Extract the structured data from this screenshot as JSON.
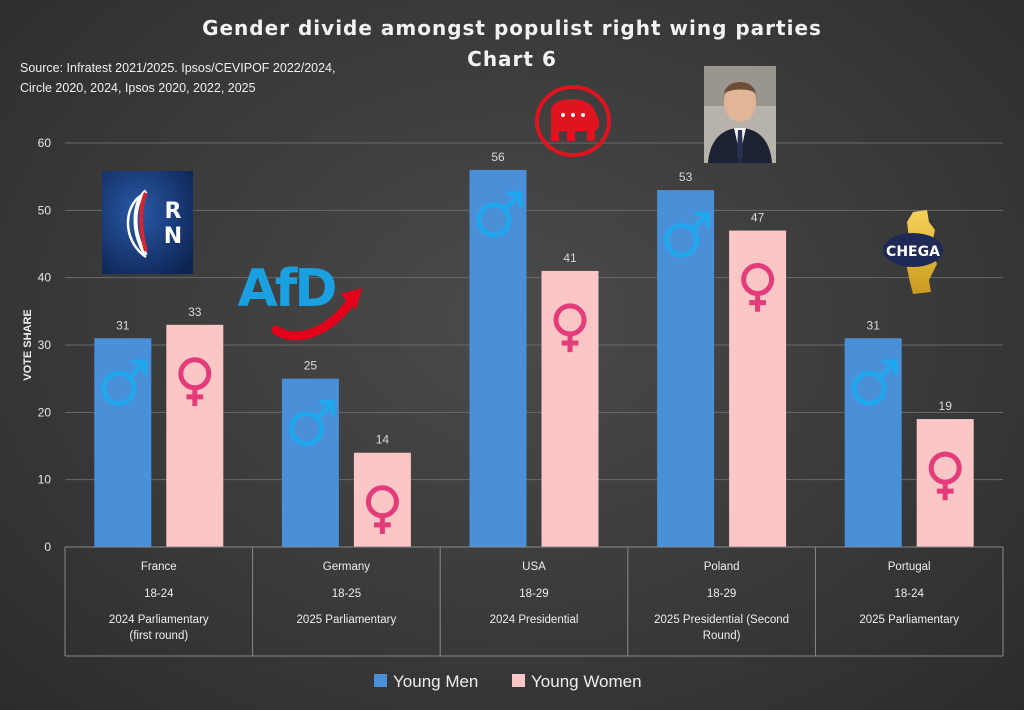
{
  "chart_data": {
    "type": "bar",
    "title": "Gender divide amongst populist right wing parties",
    "subtitle": "Chart 6",
    "source_lines": [
      "Source: Infratest 2021/2025. Ipsos/CEVIPOF 2022/2024,",
      "Circle 2020, 2024, Ipsos 2020, 2022, 2025"
    ],
    "ylabel": "VOTE SHARE",
    "ylim": [
      0,
      60
    ],
    "yticks": [
      0,
      10,
      20,
      30,
      40,
      50,
      60
    ],
    "grid": true,
    "legend_position": "bottom",
    "categories": [
      {
        "country": "France",
        "age": "18-24",
        "election": [
          "2024 Parliamentary",
          "(first round)"
        ],
        "logo": "rn-logo"
      },
      {
        "country": "Germany",
        "age": "18-25",
        "election": [
          "2025 Parliamentary"
        ],
        "logo": "afd-logo"
      },
      {
        "country": "USA",
        "age": "18-29",
        "election": [
          "2024 Presidential"
        ],
        "logo": "gop-elephant-logo"
      },
      {
        "country": "Poland",
        "age": "18-29",
        "election": [
          "2025 Presidential (Second",
          "Round)"
        ],
        "logo": "candidate-photo"
      },
      {
        "country": "Portugal",
        "age": "18-24",
        "election": [
          "2025 Parliamentary"
        ],
        "logo": "chega-logo"
      }
    ],
    "series": [
      {
        "name": "Young Men",
        "values": [
          31,
          25,
          56,
          53,
          31
        ],
        "color": "#4a90d9",
        "symbol_color": "#1ea8ee",
        "icon": "male-symbol-icon"
      },
      {
        "name": "Young Women",
        "values": [
          33,
          14,
          41,
          47,
          19
        ],
        "color": "#fbc6c6",
        "symbol_color": "#e43c7a",
        "icon": "female-symbol-icon"
      }
    ],
    "logo_text": {
      "rn": "RN",
      "afd": "AfD",
      "chega": "CHEGA"
    }
  }
}
